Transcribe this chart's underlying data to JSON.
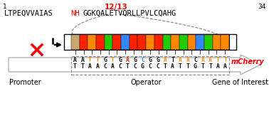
{
  "title_seq": "LTPEQVVAIAS",
  "title_seq_red": "NH",
  "title_seq_end": "GGKQALETVQRLLPVLCQAHG",
  "pos_start": "1",
  "pos_end": "34",
  "pos_label": "12/13",
  "bar_colors": [
    "#c8a870",
    "#ff2200",
    "#ff8800",
    "#ff2200",
    "#22cc00",
    "#ff2200",
    "#3388ff",
    "#ff2200",
    "#ff2200",
    "#ff8800",
    "#ff2200",
    "#22cc00",
    "#ff8800",
    "#22cc00",
    "#ff8800",
    "#3388ff",
    "#22cc00",
    "#ff8800",
    "#ff8800"
  ],
  "dna_top": [
    "A",
    "A",
    "T",
    "T",
    "G",
    "T",
    "G",
    "A",
    "G",
    "C",
    "G",
    "G",
    "A",
    "T",
    "A",
    "A",
    "C",
    "A",
    "A",
    "T",
    "T"
  ],
  "dna_top_colors": [
    "#000000",
    "#000000",
    "#ff8800",
    "#ff8800",
    "#000000",
    "#ff8800",
    "#000000",
    "#ff2200",
    "#000000",
    "#3388ff",
    "#000000",
    "#000000",
    "#ff8800",
    "#000000",
    "#ff8800",
    "#ff8800",
    "#000000",
    "#ff8800",
    "#ff8800",
    "#ff8800",
    "#ff8800"
  ],
  "dna_bot": [
    "T",
    "T",
    "A",
    "A",
    "C",
    "A",
    "C",
    "T",
    "C",
    "G",
    "C",
    "C",
    "T",
    "A",
    "T",
    "T",
    "G",
    "T",
    "T",
    "A",
    "A"
  ],
  "mcherry_label": "mCherry",
  "promoter_label": "Promoter",
  "operator_label": "Operator",
  "goi_label": "Gene of Interest",
  "bg_color": "#ffffff",
  "fig_w": 3.78,
  "fig_h": 1.73,
  "dpi": 100
}
